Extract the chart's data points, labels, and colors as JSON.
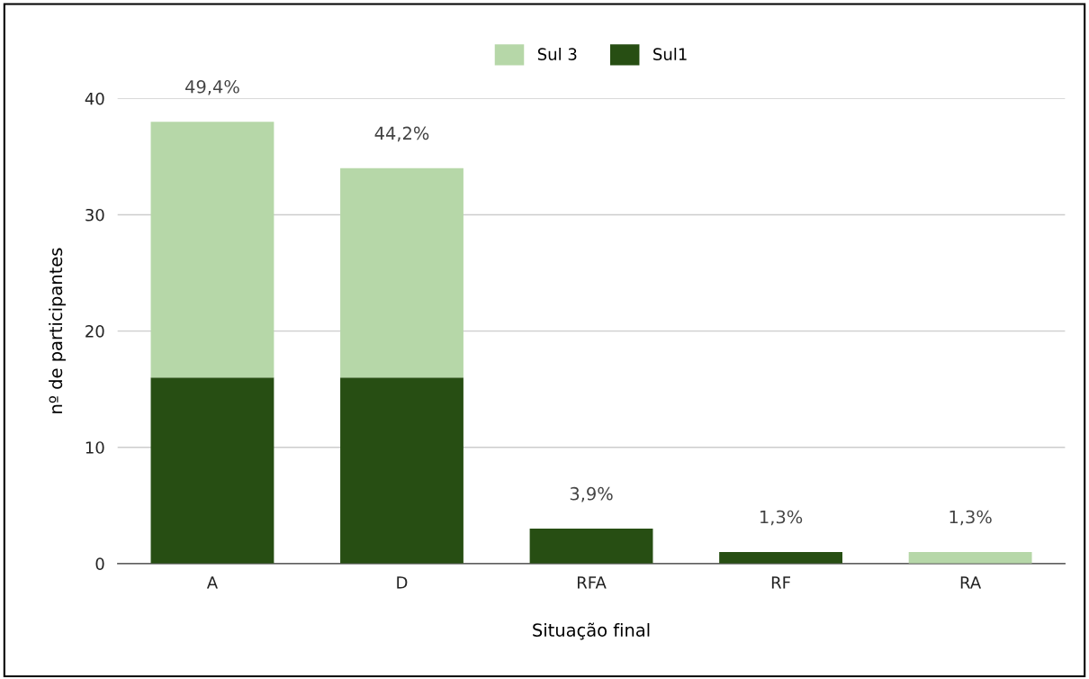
{
  "chart_data": {
    "type": "bar",
    "stacked": true,
    "xlabel": "Situação final",
    "ylabel": "nº de participantes",
    "categories": [
      "A",
      "D",
      "RFA",
      "RF",
      "RA"
    ],
    "series": [
      {
        "name": "Sul1",
        "color": "#274e13",
        "values": [
          16,
          16,
          3,
          1,
          0
        ]
      },
      {
        "name": "Sul 3",
        "color": "#b6d7a8",
        "values": [
          22,
          18,
          0,
          0,
          1
        ]
      }
    ],
    "annotations": [
      {
        "text": "49,4%",
        "x": "A",
        "y": 38
      },
      {
        "text": "44,2%",
        "x": "D",
        "y": 34
      },
      {
        "text": "3,9%",
        "x": "RFA",
        "y": 3
      },
      {
        "text": "1,3%",
        "x": "RF",
        "y": 1
      },
      {
        "text": "1,3%",
        "x": "RA",
        "y": 1
      }
    ],
    "ylim": [
      0,
      40
    ],
    "yticks": [
      0,
      10,
      20,
      30,
      40
    ],
    "grid": "y",
    "legend": "top"
  }
}
